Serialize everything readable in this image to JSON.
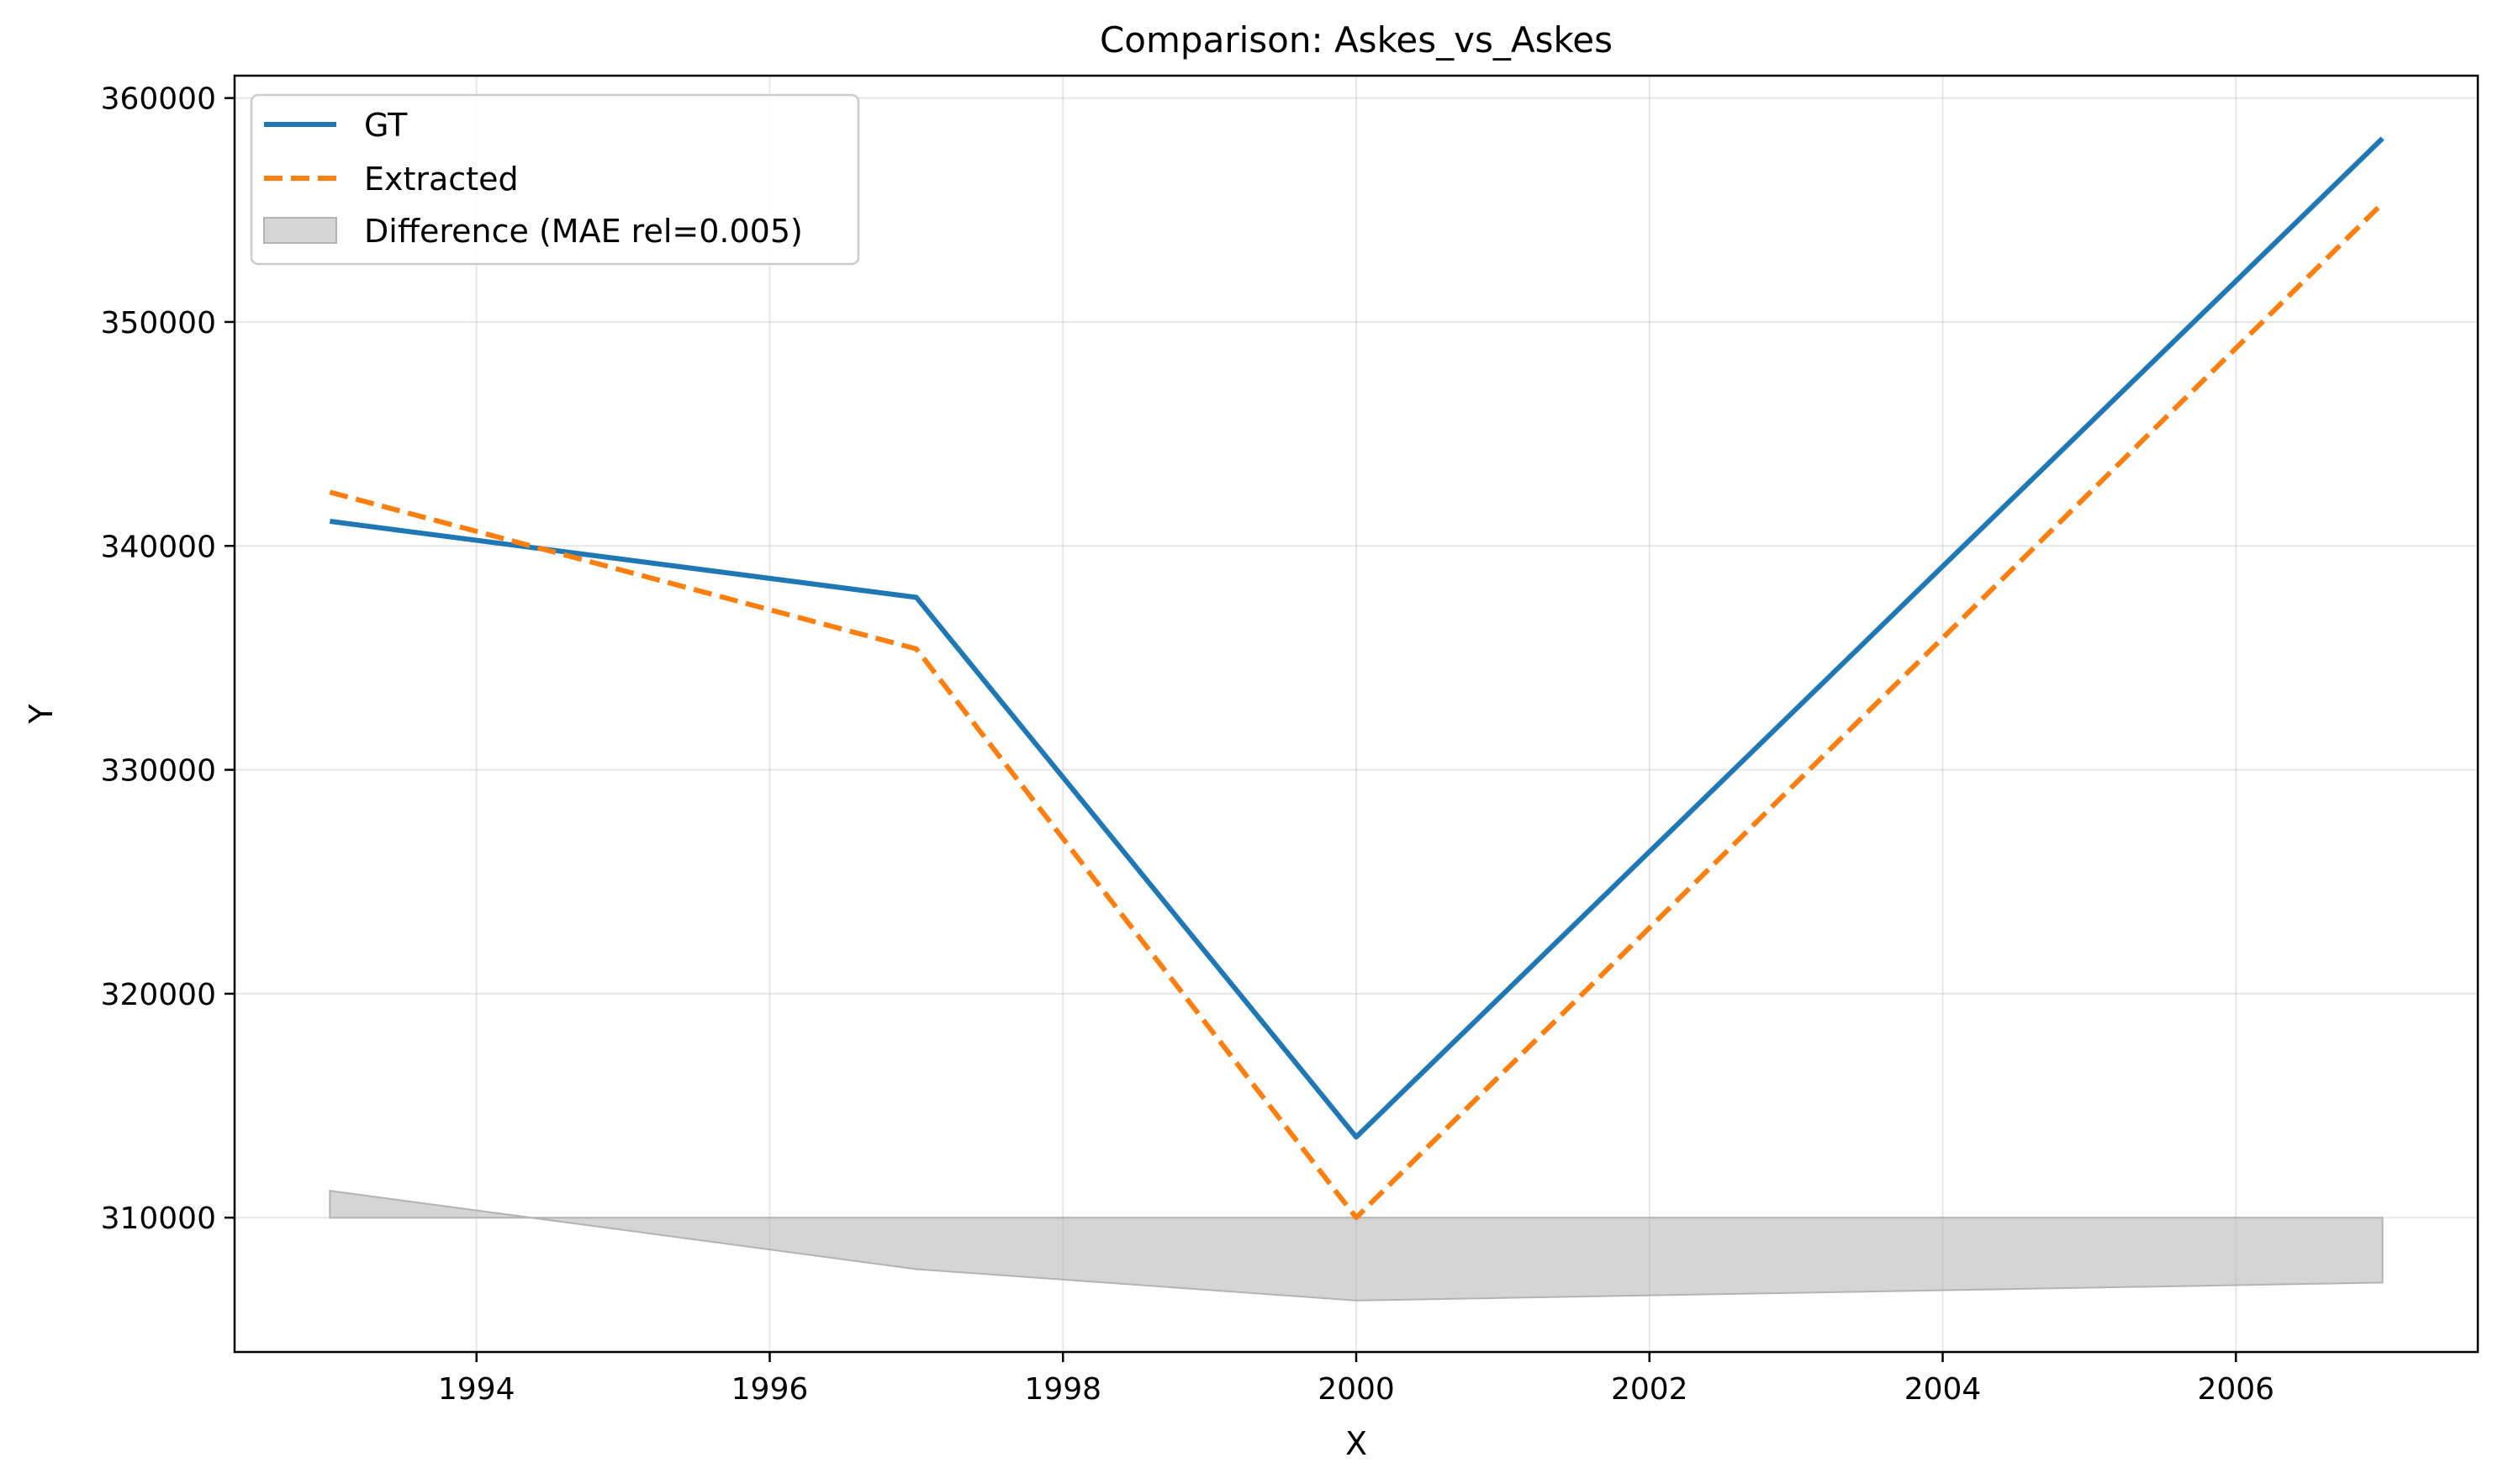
{
  "chart_data": {
    "type": "line",
    "title": "Comparison: Askes_vs_Askes",
    "xlabel": "X",
    "ylabel": "Y",
    "xlim": [
      1992.35,
      2007.65
    ],
    "ylim": [
      304000,
      361000
    ],
    "xticks": [
      1994,
      1996,
      1998,
      2000,
      2002,
      2004,
      2006
    ],
    "yticks": [
      310000,
      320000,
      330000,
      340000,
      350000,
      360000
    ],
    "grid": true,
    "legend_position": "top-left",
    "x": [
      1993,
      1997,
      2000,
      2007
    ],
    "series": [
      {
        "name": "GT",
        "values": [
          341100,
          337700,
          313600,
          358200
        ],
        "color": "#1f77b4",
        "style": "solid"
      },
      {
        "name": "Extracted",
        "values": [
          342400,
          335400,
          310000,
          355300
        ],
        "color": "#ff7f0e",
        "style": "dashed"
      }
    ],
    "difference": {
      "name": "Difference (MAE rel=0.005)",
      "baseline": 310000,
      "values": [
        311200,
        307700,
        306300,
        307100
      ],
      "color": "#b3b3b3"
    }
  }
}
